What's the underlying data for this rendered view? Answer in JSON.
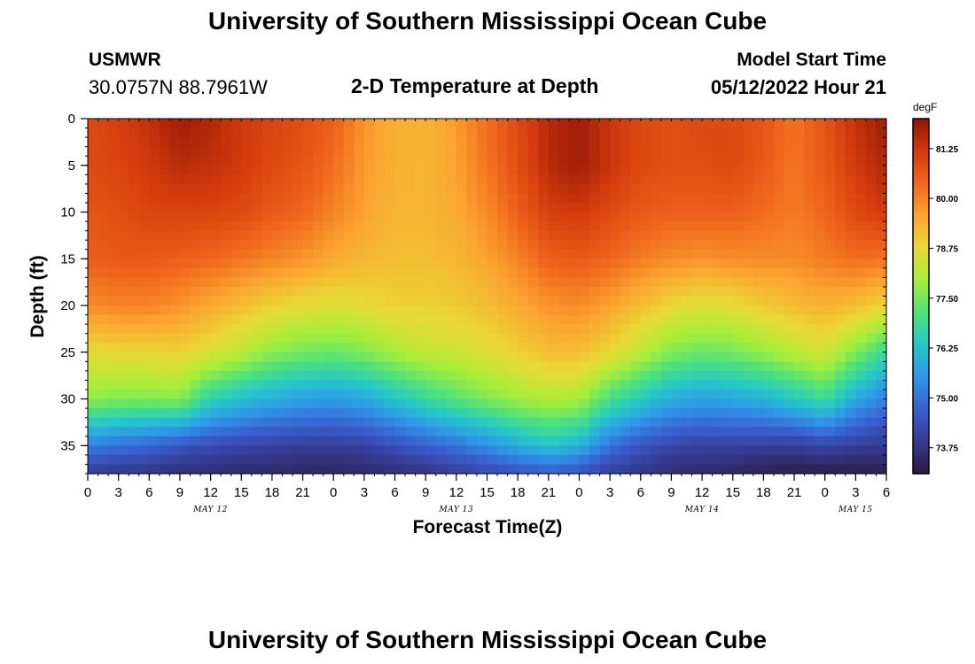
{
  "header": {
    "title": "University of Southern Mississippi Ocean Cube",
    "station": "USMWR",
    "coords": "30.0757N  88.7961W",
    "subtitle": "2-D Temperature at Depth",
    "start_label": "Model Start Time",
    "start_value": "05/12/2022 Hour 21"
  },
  "footer": {
    "title": "University of Southern Mississippi Ocean Cube"
  },
  "chart_data": {
    "type": "heatmap",
    "title": "2-D Temperature at Depth",
    "xlabel": "Forecast Time(Z)",
    "ylabel": "Depth (ft)",
    "x_ticks": [
      "0",
      "3",
      "6",
      "9",
      "12",
      "15",
      "18",
      "21",
      "0",
      "3",
      "6",
      "9",
      "12",
      "15",
      "18",
      "21",
      "0",
      "3",
      "6",
      "9",
      "12",
      "15",
      "18",
      "21",
      "0",
      "3",
      "6"
    ],
    "x_range_hours": [
      0,
      78
    ],
    "date_labels": [
      {
        "label": "MAY 12",
        "hour": 12
      },
      {
        "label": "MAY 13",
        "hour": 36
      },
      {
        "label": "MAY 14",
        "hour": 60
      },
      {
        "label": "MAY 15",
        "hour": 75
      }
    ],
    "y_ticks": [
      "0",
      "5",
      "10",
      "15",
      "20",
      "25",
      "30",
      "35"
    ],
    "ylim": [
      0,
      38
    ],
    "y_inverted": true,
    "colorbar": {
      "units": "degF",
      "ticks": [
        "81.25",
        "80.00",
        "78.75",
        "77.50",
        "76.25",
        "75.00",
        "73.75"
      ],
      "range": [
        73.1,
        82.0
      ],
      "colors": [
        "#2b1a42",
        "#353a8f",
        "#3a5fd1",
        "#2f97e8",
        "#25c7c9",
        "#4fe27a",
        "#a6ee3a",
        "#e9d936",
        "#fba530",
        "#f0661c",
        "#d23a0c",
        "#8e1407"
      ]
    },
    "columns_hours": [
      0,
      3,
      6,
      9,
      12,
      15,
      18,
      21,
      24,
      27,
      30,
      33,
      36,
      39,
      42,
      45,
      48,
      51,
      54,
      57,
      60,
      63,
      66,
      69,
      72,
      75,
      78
    ],
    "depth_levels_ft": [
      0,
      5,
      10,
      15,
      20,
      25,
      30,
      35,
      38
    ],
    "temperature_degF": [
      [
        80.9,
        80.9,
        80.7,
        80.5,
        79.9,
        78.7,
        77.8,
        75.2,
        73.9
      ],
      [
        81.1,
        81.0,
        80.8,
        80.6,
        80.0,
        78.8,
        77.6,
        75.0,
        73.8
      ],
      [
        81.4,
        81.2,
        81.0,
        80.6,
        80.0,
        78.8,
        77.6,
        74.8,
        73.8
      ],
      [
        81.8,
        81.5,
        81.0,
        80.5,
        79.8,
        78.9,
        77.7,
        74.5,
        73.6
      ],
      [
        81.6,
        81.4,
        81.0,
        80.4,
        79.5,
        78.6,
        76.6,
        74.3,
        73.6
      ],
      [
        81.2,
        81.2,
        80.9,
        80.2,
        79.2,
        78.2,
        76.2,
        74.2,
        73.5
      ],
      [
        81.0,
        80.9,
        80.6,
        80.0,
        78.9,
        77.7,
        75.9,
        74.1,
        73.5
      ],
      [
        80.8,
        80.7,
        80.4,
        79.8,
        78.7,
        77.5,
        75.7,
        74.0,
        73.4
      ],
      [
        80.5,
        80.3,
        80.0,
        79.5,
        78.6,
        77.4,
        75.6,
        74.0,
        73.4
      ],
      [
        79.8,
        79.7,
        79.6,
        79.3,
        78.7,
        77.6,
        75.8,
        74.1,
        73.5
      ],
      [
        79.4,
        79.4,
        79.3,
        79.2,
        78.9,
        78.0,
        76.3,
        74.4,
        73.6
      ],
      [
        79.3,
        79.3,
        79.3,
        79.2,
        78.9,
        78.3,
        76.8,
        74.7,
        73.8
      ],
      [
        79.7,
        79.6,
        79.5,
        79.3,
        79.0,
        78.4,
        77.2,
        75.0,
        74.0
      ],
      [
        80.3,
        80.2,
        79.9,
        79.6,
        79.2,
        78.6,
        77.6,
        75.4,
        74.2
      ],
      [
        80.9,
        80.8,
        80.5,
        80.0,
        79.5,
        78.9,
        77.9,
        75.9,
        74.4
      ],
      [
        81.5,
        81.5,
        81.1,
        80.5,
        79.8,
        79.2,
        78.1,
        76.3,
        74.6
      ],
      [
        81.8,
        81.8,
        81.2,
        80.6,
        79.9,
        79.2,
        78.0,
        76.0,
        74.4
      ],
      [
        81.3,
        81.3,
        80.9,
        80.4,
        79.6,
        78.8,
        77.0,
        75.0,
        74.0
      ],
      [
        80.9,
        80.9,
        80.6,
        80.1,
        79.2,
        78.2,
        76.4,
        74.5,
        73.8
      ],
      [
        80.8,
        80.8,
        80.5,
        79.9,
        78.8,
        77.6,
        75.9,
        74.2,
        73.6
      ],
      [
        80.9,
        80.8,
        80.5,
        79.8,
        78.6,
        77.4,
        75.7,
        74.1,
        73.5
      ],
      [
        80.9,
        80.9,
        80.5,
        79.9,
        78.7,
        77.5,
        75.8,
        74.1,
        73.4
      ],
      [
        80.7,
        80.6,
        80.3,
        79.9,
        79.0,
        77.8,
        76.0,
        74.0,
        73.3
      ],
      [
        80.2,
        80.2,
        80.1,
        79.9,
        79.2,
        78.2,
        76.4,
        74.0,
        73.2
      ],
      [
        80.7,
        80.6,
        80.4,
        80.1,
        79.4,
        78.5,
        76.9,
        74.2,
        73.2
      ],
      [
        81.4,
        81.2,
        80.9,
        80.3,
        79.2,
        77.6,
        75.8,
        74.0,
        73.2
      ],
      [
        81.8,
        81.6,
        81.2,
        80.2,
        78.8,
        76.8,
        75.2,
        73.9,
        73.3
      ]
    ]
  }
}
